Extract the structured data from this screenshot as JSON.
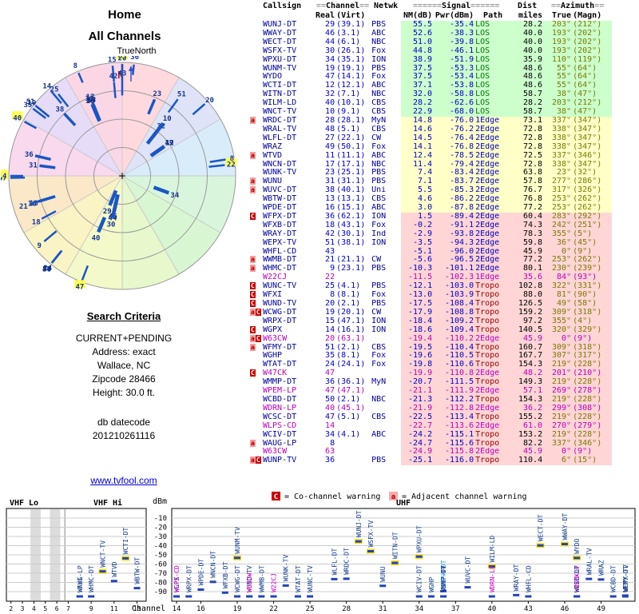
{
  "radar": {
    "title": "Home",
    "subtitle": "All Channels",
    "north_label": "TrueNorth",
    "north_letter": "N",
    "bar_color": "#1a56c4",
    "label_color": "#16368c",
    "pending_highlight": "#ffff55",
    "wedge_colors": [
      "#ffd9de",
      "#dfe3f8",
      "#d9ecfa",
      "#d9f6dd",
      "#d9f6d2",
      "#e7f8cd",
      "#f3f9c8",
      "#faf3c4",
      "#fae8c8",
      "#f8d9ee",
      "#e6dcf8",
      "#fbd7e6"
    ]
  },
  "criteria": {
    "title": "Search Criteria",
    "lines": [
      "CURRENT+PENDING",
      "Address: exact",
      "Wallace, NC",
      "Zipcode 28466",
      "Height: 30.0 ft."
    ],
    "db_label": "db datecode",
    "db_value": "201210261116"
  },
  "link_text": "www.tvfool.com",
  "legend": {
    "c_symbol": "C",
    "c_text": "= Co-channel warning",
    "a_symbol": "a",
    "a_text": "= Adjacent channel warning"
  },
  "chart": {
    "dbm_label": "dBm",
    "channel_label": "Channel",
    "vhf_lo": "VHF Lo",
    "vhf_hi": "VHF Hi",
    "uhf": "UHF",
    "y_ticks": [
      -10,
      -20,
      -30,
      -40,
      -50,
      -60,
      -70,
      -80,
      -90
    ],
    "uhf_ticks": [
      14,
      16,
      19,
      22,
      25,
      28,
      31,
      34,
      37,
      40,
      43,
      46,
      49
    ],
    "vhf_ticks": [
      2,
      3,
      4,
      5,
      6,
      7,
      9,
      11,
      13
    ]
  },
  "table": {
    "group_headers": {
      "callsign": "Callsign",
      "channel": "==Channel==",
      "netwk": "Netwk",
      "signal": "======Signal======",
      "dist": "Dist",
      "azimuth": "==Azimuth=="
    },
    "sub_headers": {
      "real": "Real",
      "virt": "(Virt)",
      "nm": "NM(dB)",
      "pwr": "Pwr(dBm)",
      "path": "Path",
      "miles": "miles",
      "true": "True",
      "magn": "(Magn)"
    },
    "band_colors": {
      "green": "#ccffcc",
      "yellow": "#ffffc8",
      "pink": "#ffd5d5"
    },
    "row_fields": [
      "marker",
      "callsign",
      "real_ch",
      "virtual_ch",
      "network",
      "nm_db",
      "pwr_dbm",
      "path",
      "dist_miles",
      "azimuth_true_deg",
      "azimuth_magn_deg",
      "flag"
    ],
    "rows": [
      [
        "",
        "WUNJ-DT",
        29,
        "39.1",
        "PBS",
        55.5,
        -35.4,
        "LOS",
        28.2,
        203,
        212,
        ""
      ],
      [
        "",
        "WWAY-DT",
        46,
        "3.1",
        "ABC",
        52.6,
        -38.3,
        "LOS",
        40.0,
        193,
        202,
        ""
      ],
      [
        "",
        "WECT-DT",
        44,
        "6.1",
        "NBC",
        51.0,
        -39.8,
        "LOS",
        40.0,
        193,
        202,
        ""
      ],
      [
        "",
        "WSFX-TV",
        30,
        "26.1",
        "Fox",
        44.8,
        -46.1,
        "LOS",
        40.0,
        193,
        202,
        ""
      ],
      [
        "",
        "WPXU-DT",
        34,
        "35.1",
        "ION",
        38.9,
        -51.9,
        "LOS",
        35.9,
        110,
        119,
        ""
      ],
      [
        "",
        "WUNM-TV",
        19,
        "19.1",
        "PBS",
        37.5,
        -53.3,
        "LOS",
        48.6,
        55,
        64,
        ""
      ],
      [
        "",
        "WYDO",
        47,
        "14.1",
        "Fox",
        37.5,
        -53.4,
        "LOS",
        48.6,
        55,
        64,
        ""
      ],
      [
        "",
        "WCTI-DT",
        12,
        "12.1",
        "ABC",
        37.1,
        -53.8,
        "LOS",
        48.6,
        55,
        64,
        ""
      ],
      [
        "",
        "WITN-DT",
        32,
        "7.1",
        "NBC",
        32.0,
        -58.8,
        "LOS",
        58.7,
        38,
        47,
        ""
      ],
      [
        "",
        "WILM-LD",
        40,
        "10.1",
        "CBS",
        28.2,
        -62.6,
        "LOS",
        28.2,
        203,
        212,
        ""
      ],
      [
        "",
        "WNCT-TV",
        10,
        "9.1",
        "CBS",
        22.9,
        -68.0,
        "LOS",
        58.7,
        38,
        47,
        ""
      ],
      [
        "a",
        "WRDC-DT",
        28,
        "28.1",
        "MyN",
        14.8,
        -76.0,
        "1Edge",
        73.1,
        337,
        347,
        ""
      ],
      [
        "",
        "WRAL-TV",
        48,
        "5.1",
        "CBS",
        14.6,
        -76.2,
        "2Edge",
        72.8,
        338,
        347,
        ""
      ],
      [
        "",
        "WLFL-DT",
        27,
        "22.1",
        "CW",
        14.5,
        -76.4,
        "2Edge",
        72.8,
        338,
        347,
        ""
      ],
      [
        "",
        "WRAZ",
        49,
        "50.1",
        "Fox",
        14.1,
        -76.8,
        "2Edge",
        72.8,
        338,
        347,
        ""
      ],
      [
        "a",
        "WTVD",
        11,
        "11.1",
        "ABC",
        12.4,
        -78.5,
        "2Edge",
        72.5,
        337,
        346,
        ""
      ],
      [
        "",
        "WNCN-DT",
        17,
        "17.1",
        "NBC",
        11.4,
        -79.4,
        "2Edge",
        72.8,
        338,
        347,
        ""
      ],
      [
        "",
        "WUNK-TV",
        23,
        "25.1",
        "PBS",
        7.4,
        -83.4,
        "2Edge",
        63.8,
        23,
        32,
        ""
      ],
      [
        "a",
        "WUNU",
        31,
        "31.1",
        "PBS",
        7.1,
        -83.7,
        "2Edge",
        57.8,
        277,
        286,
        ""
      ],
      [
        "a",
        "WUVC-DT",
        38,
        "40.1",
        "Uni",
        5.5,
        -85.3,
        "2Edge",
        76.7,
        317,
        326,
        ""
      ],
      [
        "",
        "WBTW-DT",
        13,
        "13.1",
        "CBS",
        4.6,
        -86.2,
        "2Edge",
        76.8,
        253,
        262,
        ""
      ],
      [
        "",
        "WPDE-DT",
        16,
        "15.1",
        "ABC",
        3.0,
        -87.8,
        "2Edge",
        77.2,
        253,
        262,
        ""
      ],
      [
        "C",
        "WFPX-DT",
        36,
        "62.1",
        "ION",
        1.5,
        -89.4,
        "2Edge",
        60.4,
        283,
        292,
        "cyan"
      ],
      [
        "",
        "WFXB-DT",
        18,
        "43.1",
        "Fox",
        -0.2,
        -91.1,
        "2Edge",
        74.3,
        242,
        251,
        ""
      ],
      [
        "",
        "WRAY-DT",
        42,
        "30.1",
        "Ind",
        -2.9,
        -93.8,
        "2Edge",
        78.3,
        355,
        5,
        ""
      ],
      [
        "",
        "WEPX-TV",
        51,
        "38.1",
        "ION",
        -3.5,
        -94.3,
        "2Edge",
        59.8,
        36,
        45,
        ""
      ],
      [
        "",
        "WHFL-CD",
        43,
        "",
        "",
        -5.1,
        -96.0,
        "2Edge",
        45.9,
        0,
        9,
        ""
      ],
      [
        "a",
        "WWMB-DT",
        21,
        "21.1",
        "CW",
        -5.6,
        -96.5,
        "2Edge",
        77.2,
        253,
        262,
        ""
      ],
      [
        "a",
        "WHMC-DT",
        9,
        "23.1",
        "PBS",
        -10.3,
        -101.1,
        "2Edge",
        80.1,
        230,
        239,
        ""
      ],
      [
        "",
        "W22CJ",
        22,
        "",
        "",
        -11.5,
        -102.3,
        "1Edge",
        35.6,
        84,
        93,
        "p"
      ],
      [
        "C",
        "WUNC-TV",
        25,
        "4.1",
        "PBS",
        -12.1,
        -103.0,
        "Tropo",
        102.8,
        322,
        331,
        ""
      ],
      [
        "C",
        "WFXI",
        8,
        "8.1",
        "Fox",
        -13.0,
        -103.9,
        "Tropo",
        88.0,
        81,
        90,
        ""
      ],
      [
        "C",
        "WUND-TV",
        20,
        "2.1",
        "PBS",
        -17.5,
        -108.4,
        "Tropo",
        126.5,
        49,
        58,
        ""
      ],
      [
        "aC",
        "WCWG-DT",
        19,
        "20.1",
        "CW",
        -17.9,
        -108.8,
        "Tropo",
        159.2,
        309,
        318,
        ""
      ],
      [
        "",
        "WRPX-DT",
        15,
        "47.1",
        "ION",
        -18.4,
        -109.2,
        "Tropo",
        97.2,
        355,
        4,
        ""
      ],
      [
        "C",
        "WGPX",
        14,
        "16.1",
        "ION",
        -18.6,
        -109.4,
        "Tropo",
        140.5,
        320,
        329,
        ""
      ],
      [
        "aC",
        "W63CW",
        20,
        "63.1",
        "",
        -19.4,
        -110.2,
        "2Edge",
        45.9,
        0,
        9,
        "p"
      ],
      [
        "a",
        "WFMY-DT",
        51,
        "2.1",
        "CBS",
        -19.5,
        -110.4,
        "Tropo",
        160.7,
        309,
        318,
        ""
      ],
      [
        "",
        "WGHP",
        35,
        "8.1",
        "Fox",
        -19.6,
        -110.5,
        "Tropo",
        167.7,
        307,
        317,
        ""
      ],
      [
        "",
        "WTAT-DT",
        24,
        "24.1",
        "Fox",
        -19.8,
        -110.6,
        "Tropo",
        154.3,
        219,
        228,
        ""
      ],
      [
        "C",
        "W47CK",
        47,
        "",
        "",
        -19.9,
        -110.8,
        "2Edge",
        48.2,
        201,
        210,
        "p"
      ],
      [
        "",
        "WMMP-DT",
        36,
        "36.1",
        "MyN",
        -20.7,
        -111.5,
        "Tropo",
        149.3,
        219,
        228,
        ""
      ],
      [
        "",
        "WPEM-LP",
        47,
        "47.1",
        "",
        -21.1,
        -111.9,
        "2Edge",
        57.1,
        269,
        278,
        "p"
      ],
      [
        "",
        "WCBD-DT",
        50,
        "2.1",
        "NBC",
        -21.3,
        -112.2,
        "Tropo",
        154.3,
        219,
        228,
        ""
      ],
      [
        "",
        "WDRN-LP",
        40,
        "45.1",
        "",
        -21.9,
        -112.8,
        "2Edge",
        36.2,
        299,
        308,
        "p"
      ],
      [
        "",
        "WCSC-DT",
        47,
        "5.1",
        "CBS",
        -22.5,
        -113.4,
        "Tropo",
        155.2,
        219,
        228,
        ""
      ],
      [
        "",
        "WLPS-CD",
        14,
        "",
        "",
        -22.7,
        -113.6,
        "2Edge",
        61.0,
        270,
        279,
        "p"
      ],
      [
        "",
        "WCIV-DT",
        34,
        "4.1",
        "ABC",
        -24.2,
        -115.1,
        "Tropo",
        153.2,
        219,
        228,
        ""
      ],
      [
        "a",
        "WAUG-LP",
        8,
        "",
        "",
        -24.7,
        -115.6,
        "Tropo",
        82.2,
        337,
        346,
        ""
      ],
      [
        "",
        "W63CW",
        63,
        "",
        "",
        -24.9,
        -115.8,
        "2Edge",
        45.9,
        0,
        9,
        "p"
      ],
      [
        "aC",
        "WUNP-TV",
        36,
        "",
        "PBS",
        -25.1,
        -116.0,
        "Tropo",
        110.4,
        6,
        15,
        ""
      ]
    ]
  }
}
